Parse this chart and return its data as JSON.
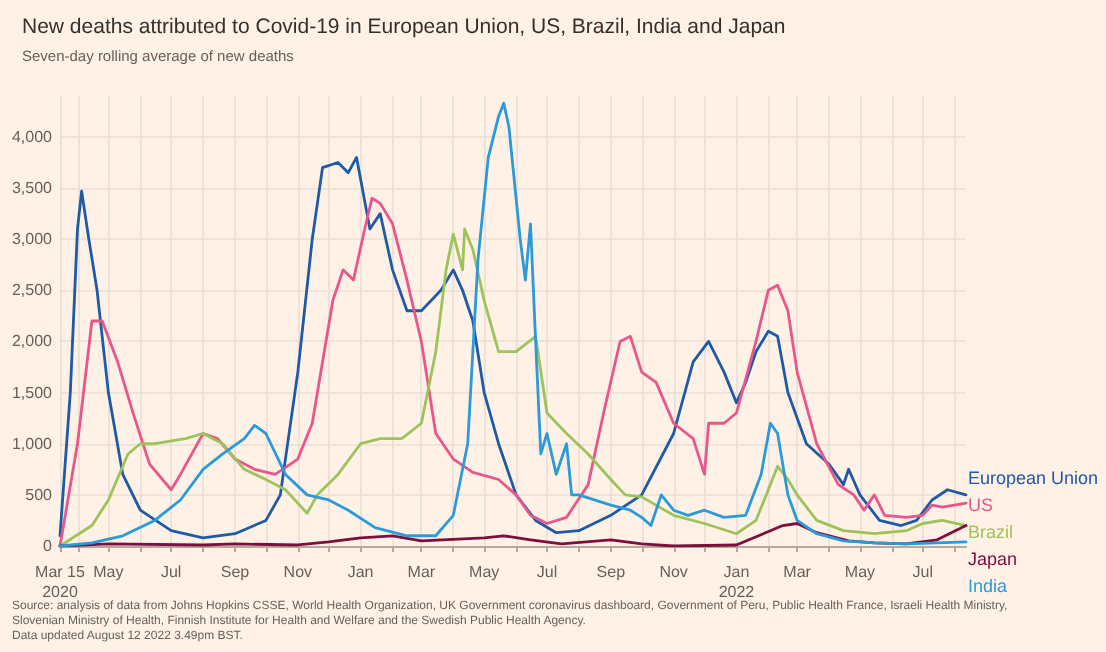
{
  "chart_data": {
    "type": "line",
    "title": "New deaths attributed to Covid-19 in European Union, US, Brazil, India and Japan",
    "subtitle": "Seven-day rolling average of new deaths",
    "annotations": [
      "Source: analysis of data from Johns Hopkins CSSE, World Health Organization, UK Government coronavirus dashboard, Government of Peru, Public Health France, Israeli Health Ministry, Slovenian Ministry of Health, Finnish Institute for Health and Welfare and the Swedish Public Health Agency.",
      "Data updated August 12 2022 3.49pm BST."
    ],
    "xlim": [
      "2020-03-15",
      "2022-08-12"
    ],
    "xticks": [
      {
        "value": "2020-03-15",
        "label": "Mar 15\n2020"
      },
      {
        "value": "2020-04-01",
        "label": null
      },
      {
        "value": "2020-05-01",
        "label": "May"
      },
      {
        "value": "2020-06-01",
        "label": null
      },
      {
        "value": "2020-07-01",
        "label": "Jul"
      },
      {
        "value": "2020-08-01",
        "label": null
      },
      {
        "value": "2020-09-01",
        "label": "Sep"
      },
      {
        "value": "2020-10-01",
        "label": null
      },
      {
        "value": "2020-11-01",
        "label": "Nov"
      },
      {
        "value": "2020-12-01",
        "label": null
      },
      {
        "value": "2021-01-01",
        "label": "Jan"
      },
      {
        "value": "2021-02-01",
        "label": null
      },
      {
        "value": "2021-03-01",
        "label": "Mar"
      },
      {
        "value": "2021-04-01",
        "label": null
      },
      {
        "value": "2021-05-01",
        "label": "May"
      },
      {
        "value": "2021-06-01",
        "label": null
      },
      {
        "value": "2021-07-01",
        "label": "Jul"
      },
      {
        "value": "2021-08-01",
        "label": null
      },
      {
        "value": "2021-09-01",
        "label": "Sep"
      },
      {
        "value": "2021-10-01",
        "label": null
      },
      {
        "value": "2021-11-01",
        "label": "Nov"
      },
      {
        "value": "2021-12-01",
        "label": null
      },
      {
        "value": "2022-01-01",
        "label": "Jan\n2022"
      },
      {
        "value": "2022-02-01",
        "label": null
      },
      {
        "value": "2022-03-01",
        "label": "Mar"
      },
      {
        "value": "2022-04-01",
        "label": null
      },
      {
        "value": "2022-05-01",
        "label": "May"
      },
      {
        "value": "2022-06-01",
        "label": null
      },
      {
        "value": "2022-07-01",
        "label": "Jul"
      },
      {
        "value": "2022-08-01",
        "label": null
      }
    ],
    "ylim": [
      0,
      4400
    ],
    "yticks": [
      0,
      500,
      {
        "value": 1000,
        "label": "1,000"
      },
      {
        "value": 1500,
        "label": "1,500"
      },
      {
        "value": 2000,
        "label": "2,000"
      },
      {
        "value": 2500,
        "label": "2,500"
      },
      {
        "value": 3000,
        "label": "3,000"
      },
      {
        "value": 3500,
        "label": "3,500"
      },
      {
        "value": 4000,
        "label": "4,000"
      }
    ],
    "grid": true,
    "legend": "right",
    "series": [
      {
        "name": "European Union",
        "color": "#1f5aa6",
        "x": [
          "2020-03-15",
          "2020-03-25",
          "2020-04-01",
          "2020-04-05",
          "2020-04-12",
          "2020-04-20",
          "2020-05-01",
          "2020-05-15",
          "2020-06-01",
          "2020-07-01",
          "2020-08-01",
          "2020-09-01",
          "2020-10-01",
          "2020-10-15",
          "2020-11-01",
          "2020-11-15",
          "2020-11-25",
          "2020-12-10",
          "2020-12-20",
          "2020-12-28",
          "2021-01-10",
          "2021-01-20",
          "2021-02-01",
          "2021-02-15",
          "2021-03-01",
          "2021-03-20",
          "2021-04-01",
          "2021-04-10",
          "2021-04-20",
          "2021-05-01",
          "2021-05-15",
          "2021-06-01",
          "2021-06-20",
          "2021-07-10",
          "2021-08-01",
          "2021-09-01",
          "2021-10-01",
          "2021-11-01",
          "2021-11-20",
          "2021-12-05",
          "2021-12-20",
          "2022-01-01",
          "2022-01-10",
          "2022-01-20",
          "2022-02-01",
          "2022-02-10",
          "2022-02-20",
          "2022-03-10",
          "2022-04-01",
          "2022-04-15",
          "2022-04-20",
          "2022-05-01",
          "2022-05-20",
          "2022-06-10",
          "2022-06-25",
          "2022-07-10",
          "2022-07-25",
          "2022-08-12"
        ],
        "values": [
          100,
          1500,
          3100,
          3470,
          3000,
          2500,
          1500,
          700,
          350,
          150,
          80,
          120,
          250,
          500,
          1700,
          3000,
          3700,
          3750,
          3650,
          3800,
          3100,
          3250,
          2700,
          2300,
          2300,
          2500,
          2700,
          2500,
          2200,
          1500,
          1000,
          500,
          250,
          130,
          150,
          300,
          500,
          1100,
          1800,
          2000,
          1700,
          1400,
          1600,
          1900,
          2100,
          2050,
          1500,
          1000,
          800,
          600,
          750,
          500,
          250,
          200,
          250,
          450,
          550,
          500
        ]
      },
      {
        "name": "US",
        "color": "#e8578a",
        "x": [
          "2020-03-15",
          "2020-04-01",
          "2020-04-15",
          "2020-04-25",
          "2020-05-10",
          "2020-05-25",
          "2020-06-10",
          "2020-07-01",
          "2020-07-10",
          "2020-08-01",
          "2020-08-15",
          "2020-09-01",
          "2020-09-20",
          "2020-10-10",
          "2020-11-01",
          "2020-11-15",
          "2020-11-25",
          "2020-12-05",
          "2020-12-15",
          "2020-12-25",
          "2021-01-05",
          "2021-01-12",
          "2021-01-20",
          "2021-02-01",
          "2021-02-15",
          "2021-03-01",
          "2021-03-15",
          "2021-04-01",
          "2021-04-20",
          "2021-05-15",
          "2021-06-01",
          "2021-06-15",
          "2021-07-01",
          "2021-07-20",
          "2021-08-10",
          "2021-08-25",
          "2021-09-10",
          "2021-09-20",
          "2021-10-01",
          "2021-10-15",
          "2021-11-01",
          "2021-11-20",
          "2021-12-01",
          "2021-12-05",
          "2021-12-20",
          "2022-01-01",
          "2022-01-20",
          "2022-02-01",
          "2022-02-10",
          "2022-02-20",
          "2022-03-01",
          "2022-03-20",
          "2022-04-10",
          "2022-04-25",
          "2022-05-05",
          "2022-05-15",
          "2022-05-25",
          "2022-06-15",
          "2022-07-01",
          "2022-07-10",
          "2022-07-20",
          "2022-08-12"
        ],
        "values": [
          0,
          1000,
          2200,
          2200,
          1800,
          1300,
          800,
          550,
          700,
          1100,
          1050,
          850,
          750,
          700,
          850,
          1200,
          1800,
          2400,
          2700,
          2600,
          3100,
          3400,
          3350,
          3150,
          2600,
          2000,
          1100,
          850,
          720,
          650,
          500,
          300,
          220,
          280,
          600,
          1300,
          2000,
          2050,
          1700,
          1600,
          1200,
          1050,
          700,
          1200,
          1200,
          1300,
          2000,
          2500,
          2550,
          2300,
          1700,
          1000,
          600,
          500,
          350,
          500,
          300,
          280,
          300,
          400,
          380,
          420
        ]
      },
      {
        "name": "Brazil",
        "color": "#9dc35b",
        "x": [
          "2020-03-15",
          "2020-04-15",
          "2020-05-01",
          "2020-05-20",
          "2020-06-01",
          "2020-06-15",
          "2020-07-15",
          "2020-08-01",
          "2020-08-20",
          "2020-09-10",
          "2020-10-01",
          "2020-10-20",
          "2020-11-10",
          "2020-11-20",
          "2020-12-10",
          "2021-01-01",
          "2021-01-20",
          "2021-02-10",
          "2021-03-01",
          "2021-03-15",
          "2021-03-25",
          "2021-04-01",
          "2021-04-10",
          "2021-04-12",
          "2021-04-20",
          "2021-05-01",
          "2021-05-15",
          "2021-06-01",
          "2021-06-20",
          "2021-07-01",
          "2021-07-20",
          "2021-08-10",
          "2021-09-01",
          "2021-09-15",
          "2021-10-01",
          "2021-11-01",
          "2021-12-01",
          "2022-01-01",
          "2022-01-20",
          "2022-02-01",
          "2022-02-10",
          "2022-02-20",
          "2022-03-01",
          "2022-03-20",
          "2022-04-15",
          "2022-05-15",
          "2022-06-15",
          "2022-07-01",
          "2022-07-20",
          "2022-08-12"
        ],
        "values": [
          0,
          200,
          450,
          900,
          1000,
          1000,
          1050,
          1100,
          1000,
          750,
          650,
          550,
          320,
          500,
          700,
          1000,
          1050,
          1050,
          1200,
          1900,
          2700,
          3050,
          2700,
          3100,
          2900,
          2400,
          1900,
          1900,
          2050,
          1300,
          1100,
          900,
          650,
          500,
          480,
          300,
          220,
          120,
          250,
          550,
          780,
          650,
          500,
          250,
          150,
          120,
          150,
          220,
          250,
          200
        ]
      },
      {
        "name": "Japan",
        "color": "#7d0f3c",
        "x": [
          "2020-03-15",
          "2020-05-01",
          "2020-08-01",
          "2020-09-01",
          "2020-11-01",
          "2020-12-01",
          "2021-01-01",
          "2021-02-01",
          "2021-03-01",
          "2021-05-01",
          "2021-05-20",
          "2021-06-15",
          "2021-07-15",
          "2021-09-01",
          "2021-10-01",
          "2021-11-01",
          "2022-01-01",
          "2022-02-15",
          "2022-03-01",
          "2022-03-20",
          "2022-04-20",
          "2022-05-15",
          "2022-06-15",
          "2022-07-15",
          "2022-08-12"
        ],
        "values": [
          0,
          20,
          10,
          20,
          10,
          40,
          80,
          100,
          50,
          80,
          100,
          60,
          20,
          60,
          20,
          0,
          10,
          200,
          220,
          130,
          50,
          30,
          20,
          60,
          200
        ]
      },
      {
        "name": "India",
        "color": "#2a9ad8",
        "x": [
          "2020-03-15",
          "2020-04-15",
          "2020-05-15",
          "2020-06-15",
          "2020-07-10",
          "2020-08-01",
          "2020-08-20",
          "2020-09-10",
          "2020-09-20",
          "2020-10-01",
          "2020-10-20",
          "2020-11-10",
          "2020-12-01",
          "2020-12-20",
          "2021-01-15",
          "2021-02-15",
          "2021-03-15",
          "2021-04-01",
          "2021-04-15",
          "2021-04-25",
          "2021-05-05",
          "2021-05-15",
          "2021-05-20",
          "2021-05-25",
          "2021-06-05",
          "2021-06-10",
          "2021-06-15",
          "2021-06-20",
          "2021-06-25",
          "2021-07-01",
          "2021-07-10",
          "2021-07-20",
          "2021-07-25",
          "2021-08-01",
          "2021-09-01",
          "2021-09-20",
          "2021-10-01",
          "2021-10-10",
          "2021-10-20",
          "2021-11-01",
          "2021-11-15",
          "2021-12-01",
          "2021-12-20",
          "2022-01-10",
          "2022-01-25",
          "2022-02-03",
          "2022-02-10",
          "2022-02-20",
          "2022-03-01",
          "2022-03-20",
          "2022-04-15",
          "2022-05-15",
          "2022-06-15",
          "2022-07-15",
          "2022-08-12"
        ],
        "values": [
          0,
          30,
          100,
          250,
          450,
          750,
          900,
          1050,
          1180,
          1100,
          700,
          500,
          450,
          350,
          180,
          100,
          100,
          300,
          1000,
          2800,
          3800,
          4200,
          4330,
          4100,
          3000,
          2600,
          3150,
          2000,
          900,
          1100,
          700,
          1000,
          500,
          500,
          400,
          350,
          280,
          200,
          500,
          350,
          300,
          350,
          280,
          300,
          700,
          1200,
          1100,
          500,
          250,
          120,
          50,
          30,
          20,
          30,
          40
        ]
      }
    ]
  }
}
